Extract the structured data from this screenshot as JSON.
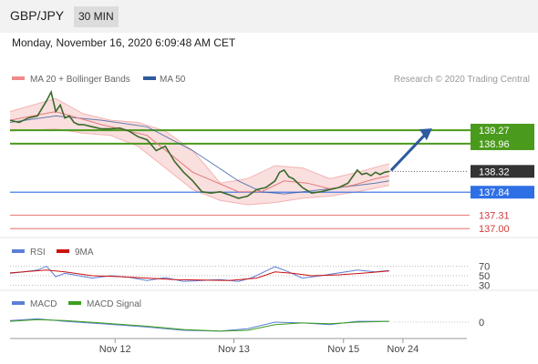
{
  "header": {
    "pair": "GBP/JPY",
    "timeframe": "30 MIN"
  },
  "date_line": "Monday, November 16, 2020 6:09:48 AM CET",
  "source": "Research © 2020 Trading Central",
  "legends": {
    "main": [
      {
        "label": "MA 20 + Bollinger Bands",
        "color": "#ef8a8a"
      },
      {
        "label": "MA 50",
        "color": "#2e5a9e"
      }
    ],
    "rsi": [
      {
        "label": "RSI",
        "color": "#5b7fd6"
      },
      {
        "label": "9MA",
        "color": "#cc1111"
      }
    ],
    "macd": [
      {
        "label": "MACD",
        "color": "#5b7fd6"
      },
      {
        "label": "MACD Signal",
        "color": "#3b9e1c"
      }
    ]
  },
  "colors": {
    "resistance": "#4a9a1c",
    "current": "#333333",
    "pivot": "#2f6fe6",
    "support": "#e88a8a",
    "arrow": "#2e5a9e"
  },
  "chart_data": [
    {
      "type": "line",
      "title": "GBP/JPY",
      "ylim": [
        136.9,
        140.3
      ],
      "xlim": [
        0,
        100
      ],
      "x_ticks": [
        {
          "label": "Nov 12",
          "x": 23
        },
        {
          "label": "Nov 13",
          "x": 49
        },
        {
          "label": "Nov 15",
          "x": 73
        },
        {
          "label": "Nov 24",
          "x": 86
        }
      ],
      "price": {
        "x": [
          0,
          2,
          4,
          6,
          8,
          9,
          10,
          11,
          12,
          13,
          14,
          15,
          16,
          18,
          20,
          22,
          24,
          26,
          28,
          30,
          32,
          34,
          36,
          38,
          40,
          42,
          44,
          46,
          48,
          50,
          52,
          54,
          56,
          58,
          59,
          60,
          61,
          62,
          64,
          66,
          68,
          70,
          72,
          74,
          76,
          77,
          78,
          79,
          80,
          81,
          82,
          83
        ],
        "y": [
          139.5,
          139.45,
          139.55,
          139.6,
          139.95,
          140.15,
          139.7,
          139.85,
          139.55,
          139.6,
          139.45,
          139.4,
          139.4,
          139.35,
          139.3,
          139.3,
          139.32,
          139.25,
          139.12,
          139.05,
          138.8,
          138.9,
          138.55,
          138.3,
          138.1,
          137.85,
          137.82,
          137.85,
          137.78,
          137.7,
          137.75,
          137.9,
          137.95,
          138.1,
          138.3,
          138.35,
          138.2,
          138.15,
          137.95,
          137.82,
          137.85,
          137.9,
          137.95,
          138.05,
          138.35,
          138.25,
          138.28,
          138.22,
          138.3,
          138.25,
          138.3,
          138.32
        ]
      },
      "ma20": {
        "x": [
          0,
          10,
          20,
          30,
          40,
          50,
          55,
          60,
          65,
          70,
          75,
          80,
          83
        ],
        "y": [
          139.5,
          139.7,
          139.4,
          139.15,
          138.3,
          137.85,
          137.85,
          138.1,
          138.05,
          137.92,
          138.0,
          138.15,
          138.22
        ]
      },
      "bollinger_upper": {
        "x": [
          0,
          10,
          16,
          22,
          28,
          34,
          40,
          46,
          52,
          58,
          64,
          70,
          76,
          83
        ],
        "y": [
          139.7,
          140.0,
          139.65,
          139.5,
          139.45,
          139.25,
          138.8,
          138.05,
          138.15,
          138.45,
          138.4,
          138.15,
          138.3,
          138.5
        ]
      },
      "bollinger_lower": {
        "x": [
          0,
          10,
          16,
          22,
          28,
          34,
          40,
          46,
          52,
          58,
          64,
          70,
          76,
          83
        ],
        "y": [
          139.25,
          139.3,
          139.2,
          139.15,
          138.9,
          138.4,
          137.9,
          137.65,
          137.55,
          137.6,
          137.7,
          137.75,
          137.85,
          138.0
        ]
      },
      "ma50": {
        "x": [
          0,
          10,
          20,
          30,
          40,
          50,
          55,
          60,
          70,
          80,
          83
        ],
        "y": [
          139.45,
          139.6,
          139.5,
          139.35,
          138.8,
          138.1,
          137.85,
          137.8,
          137.92,
          138.05,
          138.1
        ]
      },
      "levels": [
        {
          "value": 139.27,
          "label": "139.27",
          "kind": "resistance"
        },
        {
          "value": 138.96,
          "label": "138.96",
          "kind": "resistance"
        },
        {
          "value": 138.32,
          "label": "138.32",
          "kind": "current"
        },
        {
          "value": 137.84,
          "label": "137.84",
          "kind": "pivot"
        },
        {
          "value": 137.31,
          "label": "137.31",
          "kind": "support"
        },
        {
          "value": 137.0,
          "label": "137.00",
          "kind": "support"
        }
      ],
      "forecast_arrow": {
        "from": [
          83,
          138.32
        ],
        "to": [
          92,
          139.27
        ]
      }
    },
    {
      "type": "line",
      "title": "RSI",
      "ylim": [
        25,
        75
      ],
      "ticks": [
        {
          "value": 70,
          "label": "70"
        },
        {
          "value": 50,
          "label": "50"
        },
        {
          "value": 30,
          "label": "30"
        }
      ],
      "series": [
        {
          "name": "RSI",
          "x": [
            0,
            3,
            6,
            8,
            10,
            12,
            14,
            18,
            22,
            26,
            30,
            34,
            38,
            42,
            46,
            50,
            53,
            56,
            58,
            61,
            64,
            68,
            72,
            76,
            80,
            83
          ],
          "y": [
            55,
            58,
            62,
            70,
            48,
            55,
            52,
            45,
            50,
            47,
            40,
            46,
            38,
            40,
            42,
            38,
            46,
            60,
            69,
            58,
            45,
            50,
            56,
            62,
            58,
            61
          ]
        },
        {
          "name": "9MA",
          "x": [
            0,
            8,
            12,
            18,
            24,
            30,
            36,
            42,
            48,
            54,
            58,
            62,
            66,
            72,
            78,
            83
          ],
          "y": [
            56,
            62,
            58,
            50,
            48,
            45,
            42,
            41,
            40,
            45,
            58,
            55,
            50,
            52,
            56,
            60
          ]
        }
      ]
    },
    {
      "type": "line",
      "title": "MACD",
      "ylim": [
        -1,
        1
      ],
      "ticks": [
        {
          "value": 0,
          "label": "0"
        }
      ],
      "series": [
        {
          "name": "MACD",
          "x": [
            0,
            6,
            12,
            20,
            30,
            38,
            46,
            52,
            58,
            64,
            70,
            76,
            83
          ],
          "y": [
            0.1,
            0.2,
            0.05,
            -0.1,
            -0.3,
            -0.5,
            -0.55,
            -0.4,
            0.0,
            -0.05,
            -0.15,
            0.05,
            0.05
          ]
        },
        {
          "name": "MACD Signal",
          "x": [
            0,
            6,
            12,
            20,
            30,
            38,
            46,
            52,
            58,
            64,
            70,
            76,
            83
          ],
          "y": [
            0.05,
            0.15,
            0.1,
            -0.05,
            -0.25,
            -0.45,
            -0.55,
            -0.5,
            -0.15,
            -0.05,
            -0.1,
            0.0,
            0.05
          ]
        }
      ]
    }
  ]
}
